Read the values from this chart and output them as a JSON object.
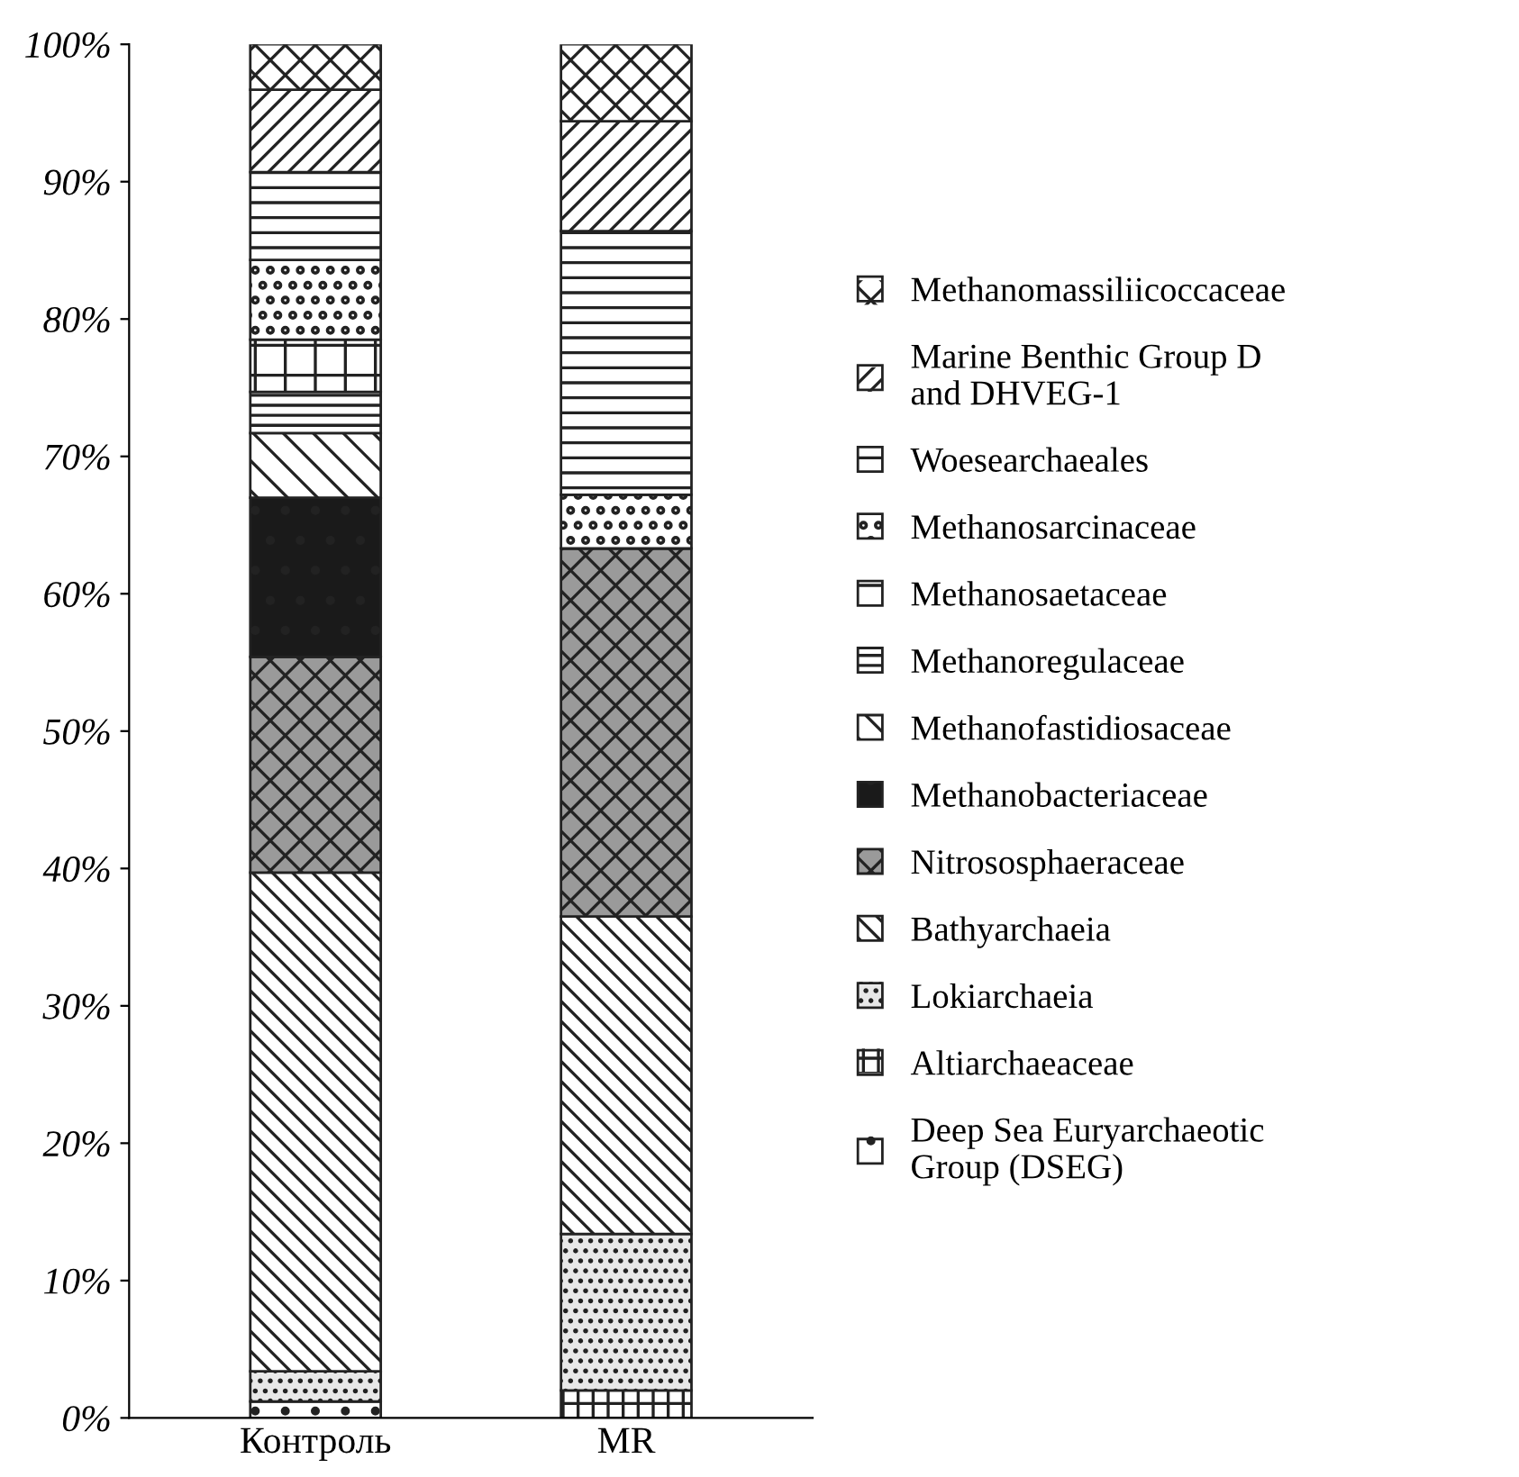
{
  "chart_data": {
    "type": "bar",
    "stacked": true,
    "categories": [
      "Контроль",
      "MR"
    ],
    "ylim": [
      0,
      100
    ],
    "yticks": [
      {
        "value": 0,
        "label": "0%"
      },
      {
        "value": 10,
        "label": "10%"
      },
      {
        "value": 20,
        "label": "20%"
      },
      {
        "value": 30,
        "label": "30%"
      },
      {
        "value": 40,
        "label": "40%"
      },
      {
        "value": 50,
        "label": "50%"
      },
      {
        "value": 60,
        "label": "60%"
      },
      {
        "value": 70,
        "label": "70%"
      },
      {
        "value": 80,
        "label": "80%"
      },
      {
        "value": 90,
        "label": "90%"
      },
      {
        "value": 100,
        "label": "100%"
      }
    ],
    "grid": false,
    "legend": "right",
    "series": [
      {
        "name": "Deep Sea Euryarchaeotic Group (DSEG)",
        "color": "#ffffff",
        "values": [
          1.2,
          0
        ]
      },
      {
        "name": "Altiarchaeaceae",
        "color": "#ffffff",
        "values": [
          0,
          2.0
        ]
      },
      {
        "name": "Lokiarchaeia",
        "color": "#e8e8e8",
        "values": [
          2.2,
          11.4
        ]
      },
      {
        "name": "Bathyarchaeia",
        "color": "#ffffff",
        "values": [
          36.3,
          23.1
        ]
      },
      {
        "name": "Nitrososphaeraceae",
        "color": "#9a9a9a",
        "values": [
          15.7,
          26.8
        ]
      },
      {
        "name": "Methanobacteriaceae",
        "color": "#1a1a1a",
        "values": [
          11.6,
          0
        ]
      },
      {
        "name": "Methanofastidiosaceae",
        "color": "#ffffff",
        "values": [
          4.7,
          0
        ]
      },
      {
        "name": "Methanoregulaceae",
        "color": "#ffffff",
        "values": [
          3.0,
          0
        ]
      },
      {
        "name": "Methanosaetaceae",
        "color": "#ffffff",
        "values": [
          3.8,
          0
        ]
      },
      {
        "name": "Methanosarcinaceae",
        "color": "#ffffff",
        "values": [
          5.8,
          3.9
        ]
      },
      {
        "name": "Woesearchaeales",
        "color": "#ffffff",
        "values": [
          6.4,
          19.2
        ]
      },
      {
        "name": "Marine Benthic Group D and DHVEG-1",
        "color": "#ffffff",
        "values": [
          6.0,
          8.0
        ]
      },
      {
        "name": "Methanomassiliicoccaceae",
        "color": "#ffffff",
        "values": [
          3.3,
          5.6
        ]
      }
    ]
  }
}
